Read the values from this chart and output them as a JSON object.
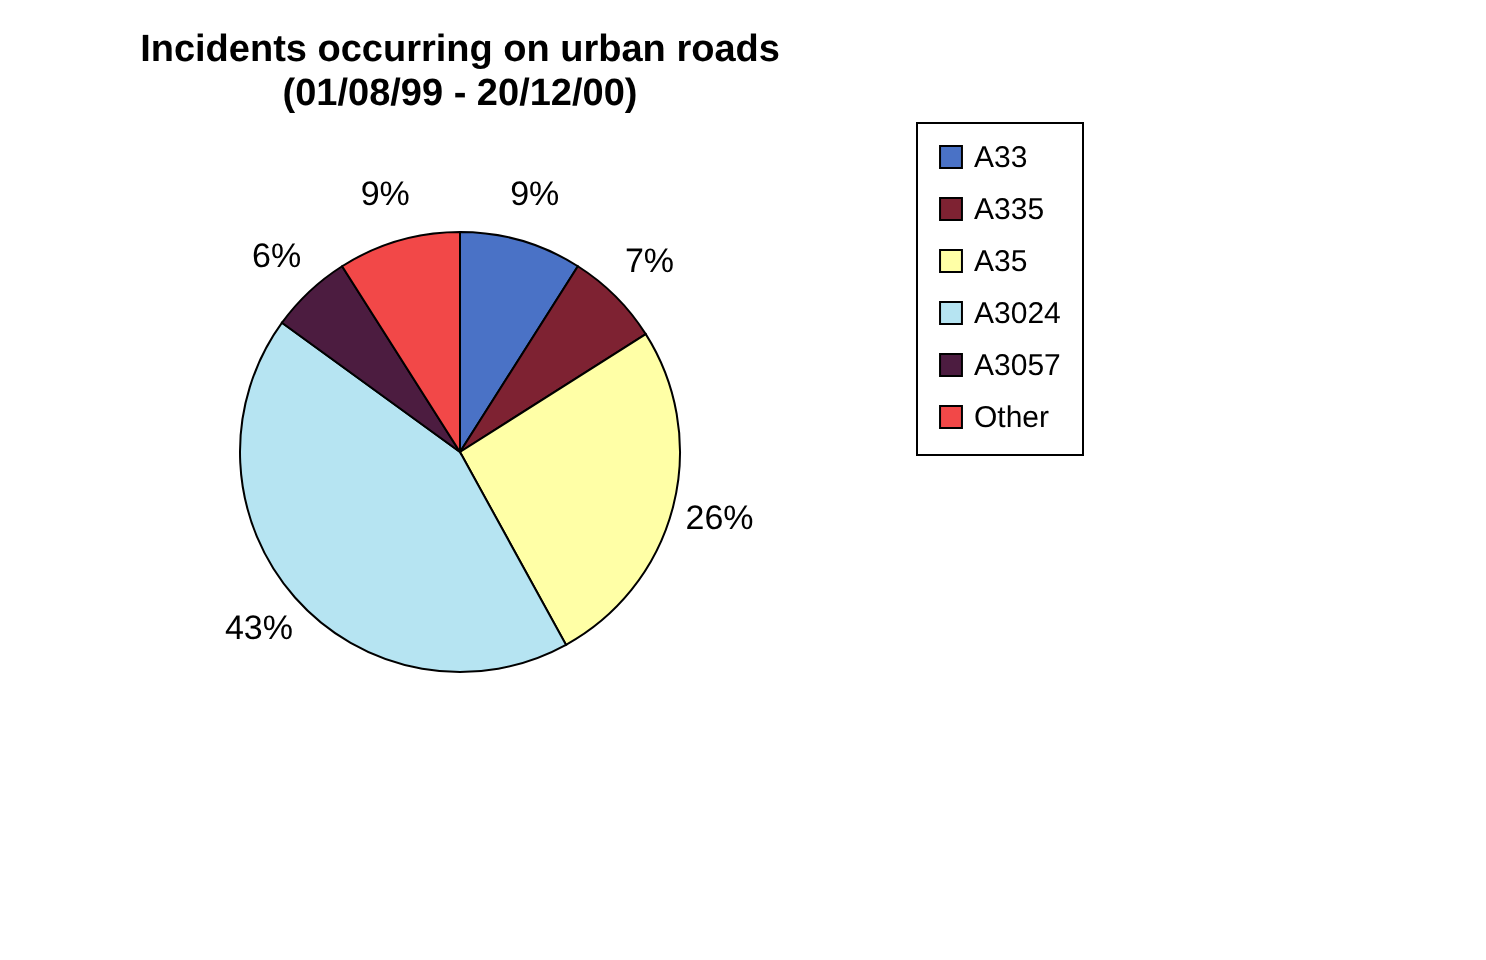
{
  "chart_data": {
    "type": "pie",
    "title": "Incidents occurring on urban roads",
    "subtitle": "(01/08/99 - 20/12/00)",
    "categories": [
      "A33",
      "A335",
      "A35",
      "A3024",
      "A3057",
      "Other"
    ],
    "values": [
      9,
      7,
      26,
      43,
      6,
      9
    ],
    "value_labels": [
      "9%",
      "7%",
      "26%",
      "43%",
      "6%",
      "9%"
    ],
    "colors": [
      "#4a72c6",
      "#7e2232",
      "#ffffa6",
      "#b6e4f2",
      "#4c1c40",
      "#f24848"
    ],
    "legend": "right"
  }
}
